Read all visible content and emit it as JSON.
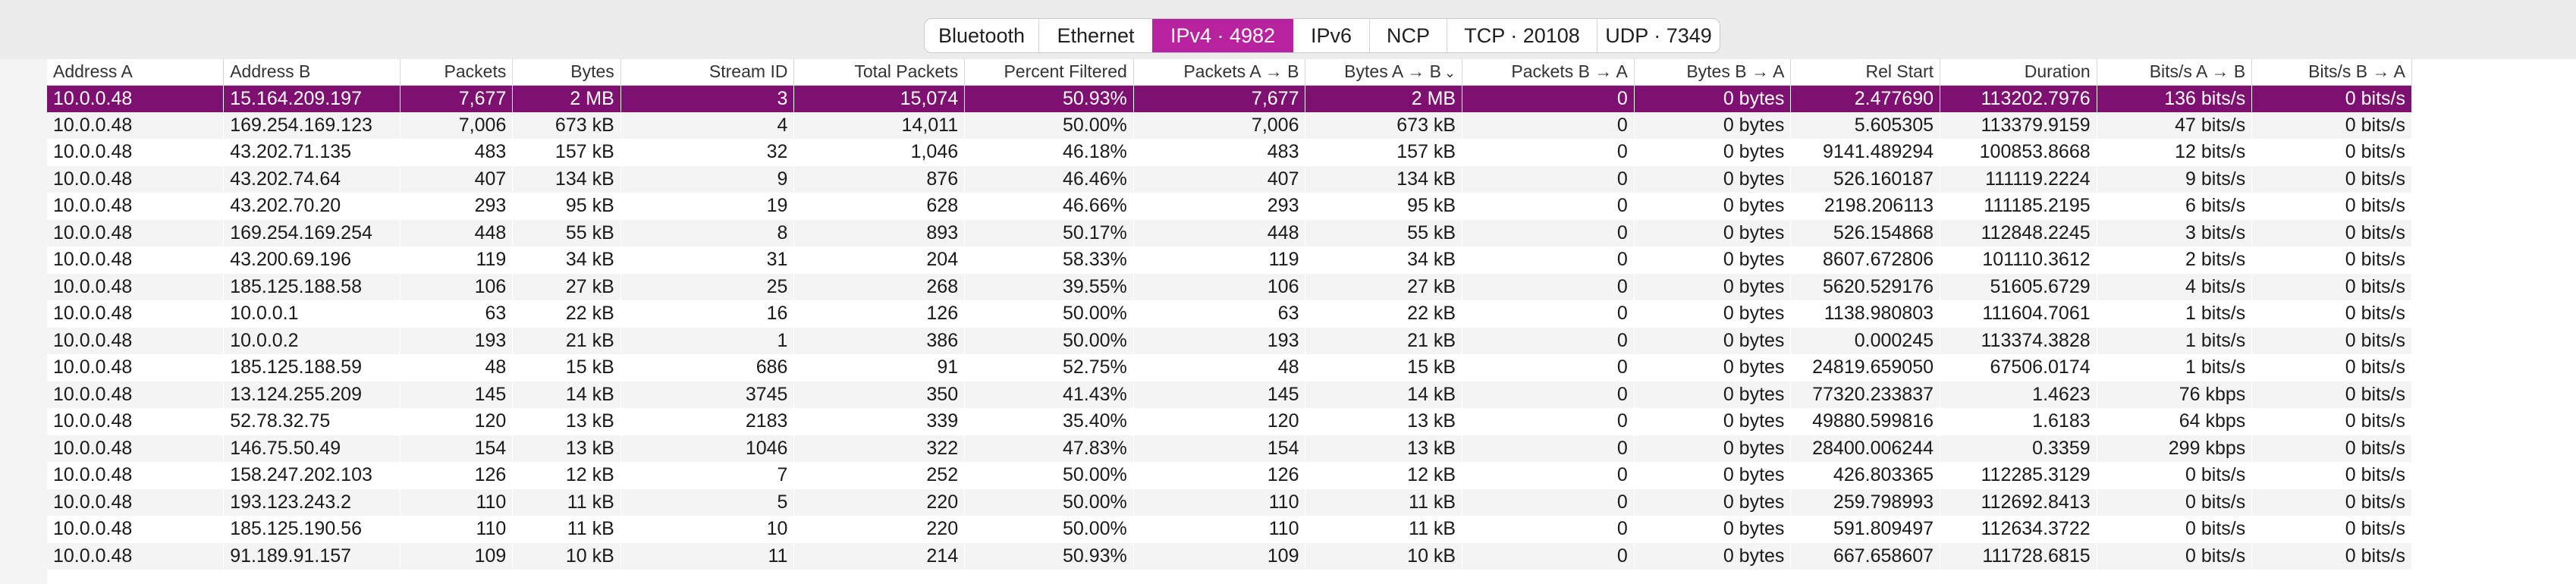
{
  "tabs": [
    {
      "label": "Bluetooth",
      "active": false
    },
    {
      "label": "Ethernet",
      "active": false
    },
    {
      "label": "IPv4 · 4982",
      "active": true
    },
    {
      "label": "IPv6",
      "active": false
    },
    {
      "label": "NCP",
      "active": false
    },
    {
      "label": "TCP · 20108",
      "active": false
    },
    {
      "label": "UDP · 7349",
      "active": false
    }
  ],
  "columns": [
    {
      "label": "Address A",
      "align": "l"
    },
    {
      "label": "Address B",
      "align": "l"
    },
    {
      "label": "Packets",
      "align": "r"
    },
    {
      "label": "Bytes",
      "align": "r"
    },
    {
      "label": "Stream ID",
      "align": "r"
    },
    {
      "label": "Total Packets",
      "align": "r"
    },
    {
      "label": "Percent Filtered",
      "align": "r"
    },
    {
      "label": "Packets A → B",
      "align": "r"
    },
    {
      "label": "Bytes A → B",
      "align": "r",
      "sorted": true
    },
    {
      "label": "Packets B → A",
      "align": "r"
    },
    {
      "label": "Bytes B → A",
      "align": "r"
    },
    {
      "label": "Rel Start",
      "align": "r"
    },
    {
      "label": "Duration",
      "align": "r"
    },
    {
      "label": "Bits/s A → B",
      "align": "r"
    },
    {
      "label": "Bits/s B → A",
      "align": "r"
    }
  ],
  "sort_indicator": "⌄",
  "selected_row": 0,
  "rows": [
    [
      "10.0.0.48",
      "15.164.209.197",
      "7,677",
      "2 MB",
      "3",
      "15,074",
      "50.93%",
      "7,677",
      "2 MB",
      "0",
      "0 bytes",
      "2.477690",
      "113202.7976",
      "136 bits/s",
      "0 bits/s"
    ],
    [
      "10.0.0.48",
      "169.254.169.123",
      "7,006",
      "673 kB",
      "4",
      "14,011",
      "50.00%",
      "7,006",
      "673 kB",
      "0",
      "0 bytes",
      "5.605305",
      "113379.9159",
      "47 bits/s",
      "0 bits/s"
    ],
    [
      "10.0.0.48",
      "43.202.71.135",
      "483",
      "157 kB",
      "32",
      "1,046",
      "46.18%",
      "483",
      "157 kB",
      "0",
      "0 bytes",
      "9141.489294",
      "100853.8668",
      "12 bits/s",
      "0 bits/s"
    ],
    [
      "10.0.0.48",
      "43.202.74.64",
      "407",
      "134 kB",
      "9",
      "876",
      "46.46%",
      "407",
      "134 kB",
      "0",
      "0 bytes",
      "526.160187",
      "111119.2224",
      "9 bits/s",
      "0 bits/s"
    ],
    [
      "10.0.0.48",
      "43.202.70.20",
      "293",
      "95 kB",
      "19",
      "628",
      "46.66%",
      "293",
      "95 kB",
      "0",
      "0 bytes",
      "2198.206113",
      "111185.2195",
      "6 bits/s",
      "0 bits/s"
    ],
    [
      "10.0.0.48",
      "169.254.169.254",
      "448",
      "55 kB",
      "8",
      "893",
      "50.17%",
      "448",
      "55 kB",
      "0",
      "0 bytes",
      "526.154868",
      "112848.2245",
      "3 bits/s",
      "0 bits/s"
    ],
    [
      "10.0.0.48",
      "43.200.69.196",
      "119",
      "34 kB",
      "31",
      "204",
      "58.33%",
      "119",
      "34 kB",
      "0",
      "0 bytes",
      "8607.672806",
      "101110.3612",
      "2 bits/s",
      "0 bits/s"
    ],
    [
      "10.0.0.48",
      "185.125.188.58",
      "106",
      "27 kB",
      "25",
      "268",
      "39.55%",
      "106",
      "27 kB",
      "0",
      "0 bytes",
      "5620.529176",
      "51605.6729",
      "4 bits/s",
      "0 bits/s"
    ],
    [
      "10.0.0.48",
      "10.0.0.1",
      "63",
      "22 kB",
      "16",
      "126",
      "50.00%",
      "63",
      "22 kB",
      "0",
      "0 bytes",
      "1138.980803",
      "111604.7061",
      "1 bits/s",
      "0 bits/s"
    ],
    [
      "10.0.0.48",
      "10.0.0.2",
      "193",
      "21 kB",
      "1",
      "386",
      "50.00%",
      "193",
      "21 kB",
      "0",
      "0 bytes",
      "0.000245",
      "113374.3828",
      "1 bits/s",
      "0 bits/s"
    ],
    [
      "10.0.0.48",
      "185.125.188.59",
      "48",
      "15 kB",
      "686",
      "91",
      "52.75%",
      "48",
      "15 kB",
      "0",
      "0 bytes",
      "24819.659050",
      "67506.0174",
      "1 bits/s",
      "0 bits/s"
    ],
    [
      "10.0.0.48",
      "13.124.255.209",
      "145",
      "14 kB",
      "3745",
      "350",
      "41.43%",
      "145",
      "14 kB",
      "0",
      "0 bytes",
      "77320.233837",
      "1.4623",
      "76 kbps",
      "0 bits/s"
    ],
    [
      "10.0.0.48",
      "52.78.32.75",
      "120",
      "13 kB",
      "2183",
      "339",
      "35.40%",
      "120",
      "13 kB",
      "0",
      "0 bytes",
      "49880.599816",
      "1.6183",
      "64 kbps",
      "0 bits/s"
    ],
    [
      "10.0.0.48",
      "146.75.50.49",
      "154",
      "13 kB",
      "1046",
      "322",
      "47.83%",
      "154",
      "13 kB",
      "0",
      "0 bytes",
      "28400.006244",
      "0.3359",
      "299 kbps",
      "0 bits/s"
    ],
    [
      "10.0.0.48",
      "158.247.202.103",
      "126",
      "12 kB",
      "7",
      "252",
      "50.00%",
      "126",
      "12 kB",
      "0",
      "0 bytes",
      "426.803365",
      "112285.3129",
      "0 bits/s",
      "0 bits/s"
    ],
    [
      "10.0.0.48",
      "193.123.243.2",
      "110",
      "11 kB",
      "5",
      "220",
      "50.00%",
      "110",
      "11 kB",
      "0",
      "0 bytes",
      "259.798993",
      "112692.8413",
      "0 bits/s",
      "0 bits/s"
    ],
    [
      "10.0.0.48",
      "185.125.190.56",
      "110",
      "11 kB",
      "10",
      "220",
      "50.00%",
      "110",
      "11 kB",
      "0",
      "0 bytes",
      "591.809497",
      "112634.3722",
      "0 bits/s",
      "0 bits/s"
    ],
    [
      "10.0.0.48",
      "91.189.91.157",
      "109",
      "10 kB",
      "11",
      "214",
      "50.93%",
      "109",
      "10 kB",
      "0",
      "0 bytes",
      "667.658607",
      "111728.6815",
      "0 bits/s",
      "0 bits/s"
    ]
  ]
}
